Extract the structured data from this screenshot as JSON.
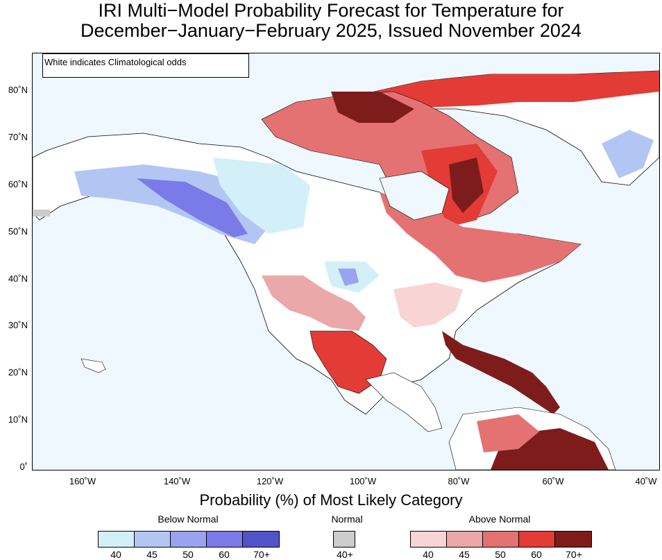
{
  "title": {
    "line1": "IRI Multi−Model Probability Forecast for Temperature for",
    "line2": "December−January−February 2025, Issued November 2024"
  },
  "note": "White indicates Climatological odds",
  "axes": {
    "lat_labels": [
      "80˚N",
      "70˚N",
      "60˚N",
      "50˚N",
      "40˚N",
      "30˚N",
      "20˚N",
      "10˚N",
      "0˚"
    ],
    "lon_labels": [
      "160˚W",
      "140˚W",
      "120˚W",
      "100˚W",
      "80˚W",
      "60˚W",
      "40˚W"
    ]
  },
  "legend": {
    "title": "Probability (%) of Most Likely Category",
    "below": {
      "label": "Below Normal",
      "ticks": [
        "40",
        "45",
        "50",
        "60",
        "70+"
      ],
      "colors": [
        "#d3f0f9",
        "#b3c6f3",
        "#9aa3ef",
        "#7a7ae9",
        "#5353c8"
      ]
    },
    "normal": {
      "label": "Normal",
      "ticks": [
        "40+"
      ],
      "colors": [
        "#cccccc"
      ]
    },
    "above": {
      "label": "Above Normal",
      "ticks": [
        "40",
        "45",
        "50",
        "60",
        "70+"
      ],
      "colors": [
        "#f8d4d4",
        "#eaa8a8",
        "#e57272",
        "#e33b36",
        "#7e1c1c"
      ]
    }
  },
  "colors": {
    "ocean": "#eff8ff",
    "land_climatology": "#ffffff"
  }
}
